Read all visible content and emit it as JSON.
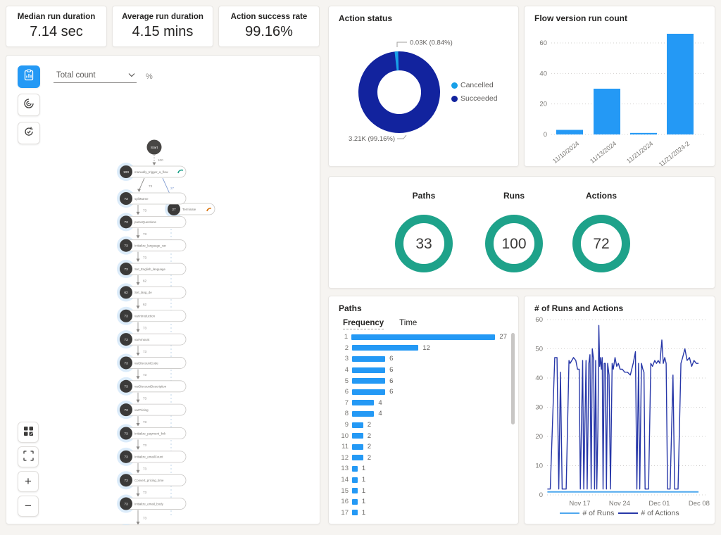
{
  "colors": {
    "accent_blue": "#2499F5",
    "cancelled_blue": "#18A0E8",
    "succeeded_navy": "#12239E",
    "teal": "#1EA28A",
    "runs_blue": "#4FA8EE",
    "actions_navy": "#2737A8",
    "node_dark": "#3B3A39",
    "edge_grey": "#8A8886",
    "branch_blue": "#7E9AD0",
    "halo_blue": "#D6E9F9",
    "terminate_orange": "#D9730B"
  },
  "kpis": [
    {
      "label": "Median run duration",
      "value": "7.14 sec"
    },
    {
      "label": "Average run duration",
      "value": "4.15 mins"
    },
    {
      "label": "Action success rate",
      "value": "99.16%"
    }
  ],
  "process_map": {
    "metric_dropdown_value": "Total count",
    "percent_label": "%",
    "zoom_in_glyph": "+",
    "zoom_out_glyph": "−",
    "flow": {
      "start_label": "Start",
      "start_edge": "100",
      "trigger": {
        "count": "100",
        "label": "manually_trigger_a_flow",
        "indicator": "teal"
      },
      "trigger_out_edge": "73",
      "branch_edge": "27",
      "terminate": {
        "count": "27",
        "label": "Terminate",
        "indicator": "orange"
      },
      "nodes": [
        {
          "count": "73",
          "label": "splitName",
          "in_edge": "73"
        },
        {
          "count": "73",
          "label": "parseQuestions",
          "in_edge": "73"
        },
        {
          "count": "73",
          "label": "Initialize_language_var",
          "in_edge": "73"
        },
        {
          "count": "73",
          "label": "Set_English_language",
          "in_edge": "73"
        },
        {
          "count": "62",
          "label": "Set_lang_de",
          "in_edge": "62"
        },
        {
          "count": "73",
          "label": "varIntroduction",
          "in_edge": "62"
        },
        {
          "count": "73",
          "label": "varAmount",
          "in_edge": "73"
        },
        {
          "count": "73",
          "label": "varDiscountCode",
          "in_edge": "73"
        },
        {
          "count": "73",
          "label": "varDiscountDescription",
          "in_edge": "73"
        },
        {
          "count": "73",
          "label": "varPricing",
          "in_edge": "73"
        },
        {
          "count": "73",
          "label": "Initialize_payment_link",
          "in_edge": "73"
        },
        {
          "count": "73",
          "label": "Initialize_emailCount",
          "in_edge": "73"
        },
        {
          "count": "73",
          "label": "Convert_pricing_time",
          "in_edge": "73"
        },
        {
          "count": "73",
          "label": "Initialize_email_body",
          "in_edge": "73"
        }
      ],
      "trailing_edge": "73"
    }
  },
  "chart_data": [
    {
      "type": "pie",
      "title": "Action status",
      "legend_position": "right",
      "slices": [
        {
          "label": "Cancelled",
          "value": 30,
          "display": "0.03K (0.84%)",
          "color": "#18A0E8"
        },
        {
          "label": "Succeeded",
          "value": 3210,
          "display": "3.21K (99.16%)",
          "color": "#12239E"
        }
      ]
    },
    {
      "type": "bar",
      "title": "Flow version run count",
      "categories": [
        "11/10/2024",
        "11/13/2024",
        "11/21/2024",
        "11/21/2024-2"
      ],
      "values": [
        3,
        30,
        1,
        66
      ],
      "yticks": [
        0,
        20,
        40,
        60
      ],
      "ylim": [
        0,
        70
      ],
      "grid": "dotted"
    },
    {
      "type": "gauge",
      "items": [
        {
          "label": "Paths",
          "value": "33"
        },
        {
          "label": "Runs",
          "value": "100"
        },
        {
          "label": "Actions",
          "value": "72"
        }
      ]
    },
    {
      "type": "bar-horizontal",
      "title": "Paths",
      "tabs": [
        "Frequency",
        "Time"
      ],
      "active_tab": "Frequency",
      "categories": [
        "1",
        "2",
        "3",
        "4",
        "5",
        "6",
        "7",
        "8",
        "9",
        "10",
        "11",
        "12",
        "13",
        "14",
        "15",
        "16",
        "17"
      ],
      "values": [
        27,
        12,
        6,
        6,
        6,
        6,
        4,
        4,
        2,
        2,
        2,
        2,
        1,
        1,
        1,
        1,
        1
      ]
    },
    {
      "type": "line",
      "title": "# of Runs and Actions",
      "x_ticks": [
        "Nov 17",
        "Nov 24",
        "Dec 01",
        "Dec 08"
      ],
      "x_tick_days": [
        6,
        13,
        20,
        27
      ],
      "yticks": [
        0,
        10,
        20,
        30,
        40,
        50,
        60
      ],
      "ylim": [
        0,
        60
      ],
      "series": [
        {
          "name": "# of Runs",
          "color": "#4FA8EE",
          "points": [
            [
              0.3,
              1
            ],
            [
              26.9,
              1
            ]
          ]
        },
        {
          "name": "# of Actions",
          "color": "#2737A8",
          "points": [
            [
              0.3,
              2
            ],
            [
              0.8,
              2
            ],
            [
              1.6,
              47
            ],
            [
              2.0,
              47
            ],
            [
              2.3,
              2
            ],
            [
              2.6,
              42
            ],
            [
              2.9,
              2
            ],
            [
              3.6,
              2
            ],
            [
              4.1,
              46
            ],
            [
              4.3,
              45
            ],
            [
              4.6,
              46
            ],
            [
              4.9,
              47
            ],
            [
              5.3,
              46
            ],
            [
              5.6,
              43
            ],
            [
              5.9,
              43
            ],
            [
              6.1,
              2
            ],
            [
              6.5,
              46
            ],
            [
              6.7,
              2
            ],
            [
              7.1,
              46
            ],
            [
              7.3,
              2
            ],
            [
              7.6,
              45
            ],
            [
              7.8,
              48
            ],
            [
              8.0,
              2
            ],
            [
              8.2,
              50
            ],
            [
              8.45,
              46
            ],
            [
              8.6,
              2
            ],
            [
              8.8,
              46
            ],
            [
              9.0,
              2
            ],
            [
              9.2,
              23
            ],
            [
              9.35,
              58
            ],
            [
              9.5,
              44
            ],
            [
              9.65,
              47
            ],
            [
              9.8,
              43
            ],
            [
              9.95,
              47
            ],
            [
              10.1,
              2
            ],
            [
              10.3,
              45
            ],
            [
              10.5,
              45
            ],
            [
              10.7,
              2
            ],
            [
              10.9,
              45
            ],
            [
              11.15,
              41
            ],
            [
              11.4,
              2
            ],
            [
              11.7,
              45
            ],
            [
              11.9,
              43
            ],
            [
              12.2,
              47
            ],
            [
              12.5,
              44
            ],
            [
              12.8,
              45
            ],
            [
              13.1,
              43
            ],
            [
              13.5,
              43
            ],
            [
              13.9,
              42
            ],
            [
              14.4,
              42
            ],
            [
              14.9,
              41
            ],
            [
              15.4,
              45
            ],
            [
              15.8,
              49
            ],
            [
              16.05,
              2
            ],
            [
              16.35,
              45
            ],
            [
              16.55,
              2
            ],
            [
              16.85,
              45
            ],
            [
              17.1,
              43
            ],
            [
              17.3,
              42
            ],
            [
              17.5,
              2
            ],
            [
              18.1,
              2
            ],
            [
              18.5,
              45
            ],
            [
              18.8,
              44
            ],
            [
              19.2,
              46
            ],
            [
              19.5,
              45
            ],
            [
              19.8,
              46
            ],
            [
              20.1,
              45
            ],
            [
              20.45,
              53
            ],
            [
              20.7,
              45
            ],
            [
              20.95,
              47
            ],
            [
              21.2,
              45
            ],
            [
              21.45,
              2
            ],
            [
              21.9,
              2
            ],
            [
              22.4,
              41
            ],
            [
              22.7,
              2
            ],
            [
              23.3,
              2
            ],
            [
              23.8,
              45
            ],
            [
              24.1,
              47
            ],
            [
              24.5,
              50
            ],
            [
              24.9,
              46
            ],
            [
              25.3,
              47
            ],
            [
              25.7,
              44
            ],
            [
              26.1,
              46
            ],
            [
              26.5,
              45
            ],
            [
              26.9,
              45
            ]
          ]
        }
      ]
    }
  ]
}
